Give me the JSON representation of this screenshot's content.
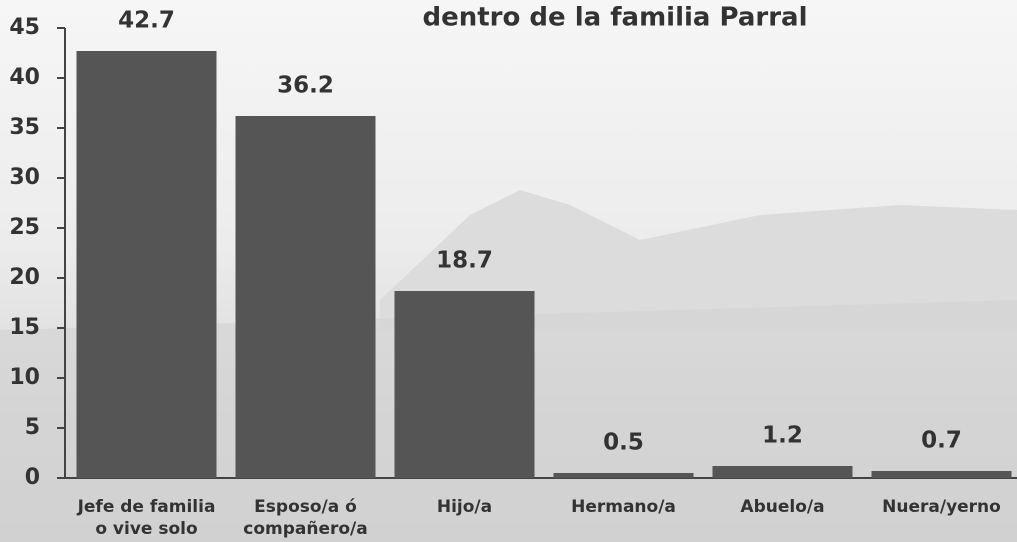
{
  "chart_data": {
    "type": "bar",
    "title": "dentro de la familia Parral",
    "categories": [
      [
        "Jefe de familia",
        "o vive solo"
      ],
      [
        "Esposo/a ó",
        "compañero/a"
      ],
      [
        "Hijo/a"
      ],
      [
        "Hermano/a"
      ],
      [
        "Abuelo/a"
      ],
      [
        "Nuera/yerno"
      ]
    ],
    "values": [
      42.7,
      36.2,
      18.7,
      0.5,
      1.2,
      0.7
    ],
    "color": "#555555",
    "ylim": [
      0,
      45
    ],
    "yticks": [
      0,
      5,
      10,
      15,
      20,
      25,
      30,
      35,
      40,
      45
    ],
    "grid": false
  }
}
